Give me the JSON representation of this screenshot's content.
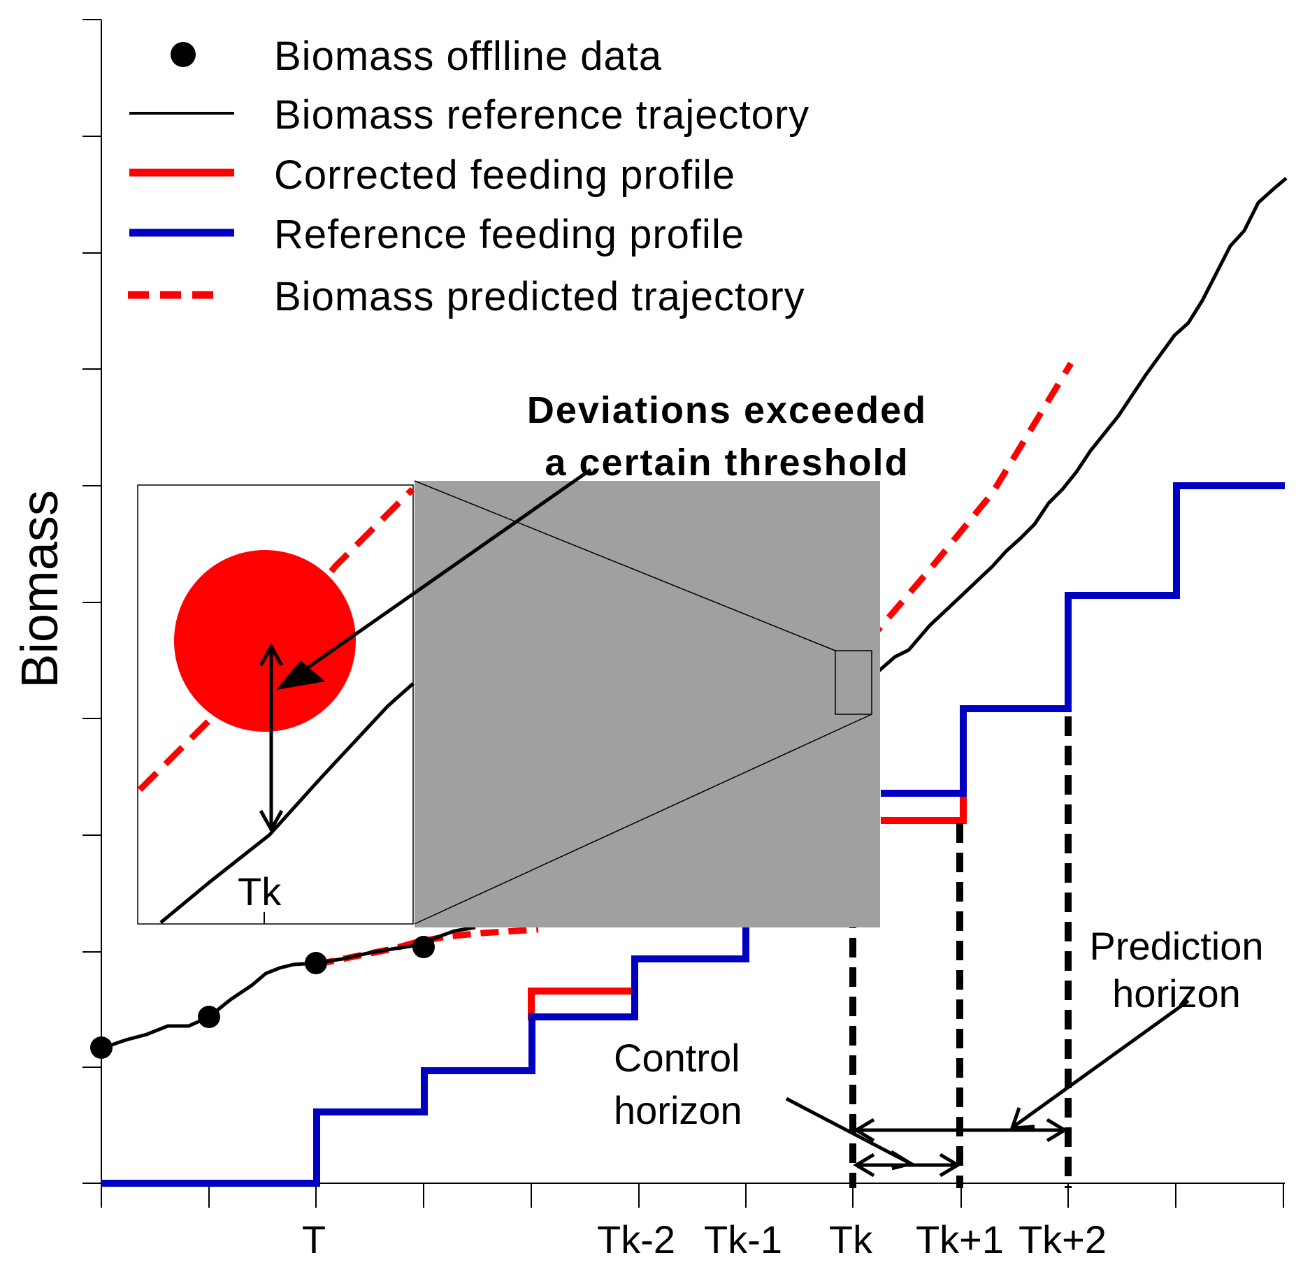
{
  "colors": {
    "reference_trajectory": "#000000",
    "corrected_feeding": "#ff0000",
    "reference_feeding": "#0000c0",
    "predicted_trajectory": "#ff0000",
    "offline_data": "#000000",
    "zoom_inset_fill": "#a0a0a0",
    "deviation_circle": "#ff0000"
  },
  "axes": {
    "ylabel": "Biomass",
    "x_ticks": [
      "T",
      "Tk-2",
      "Tk-1",
      "Tk",
      "Tk+1",
      "Tk+2"
    ]
  },
  "legend": {
    "items": [
      {
        "label": "Biomass offlline data",
        "style": "marker"
      },
      {
        "label": "Biomass reference trajectory",
        "style": "thin-line"
      },
      {
        "label": "Corrected feeding profile",
        "style": "thick-red"
      },
      {
        "label": "Reference feeding profile",
        "style": "thick-blue"
      },
      {
        "label": "Biomass predicted trajectory",
        "style": "dashed-red"
      }
    ]
  },
  "annotations": {
    "deviation_line1": "Deviations exceeded",
    "deviation_line2": "a certain threshold",
    "inset_tk": "Tk",
    "control_line1": "Control",
    "control_line2": "horizon",
    "prediction_line1": "Prediction",
    "prediction_line2": "horizon"
  }
}
